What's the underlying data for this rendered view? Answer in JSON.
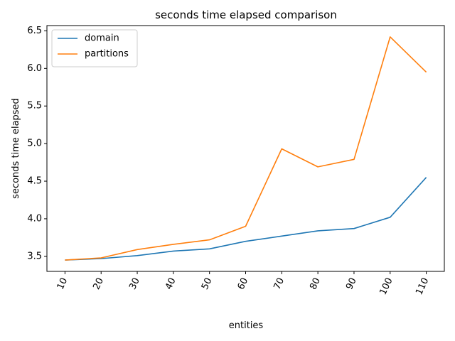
{
  "chart_data": {
    "type": "line",
    "title": "seconds time elapsed comparison",
    "xlabel": "entities",
    "ylabel": "seconds time elapsed",
    "x": [
      10,
      20,
      30,
      40,
      50,
      60,
      70,
      80,
      90,
      100,
      110
    ],
    "xticks": [
      "10",
      "20",
      "30",
      "40",
      "50",
      "60",
      "70",
      "80",
      "90",
      "100",
      "110"
    ],
    "yticks": [
      "3.5",
      "4.0",
      "4.5",
      "5.0",
      "5.5",
      "6.0",
      "6.5"
    ],
    "ylim": [
      3.3,
      6.57
    ],
    "grid": false,
    "legend_position": "top-left",
    "series": [
      {
        "name": "domain",
        "color": "#1f77b4",
        "values": [
          3.45,
          3.47,
          3.51,
          3.57,
          3.6,
          3.7,
          3.77,
          3.84,
          3.87,
          4.02,
          4.55
        ]
      },
      {
        "name": "partitions",
        "color": "#ff7f0e",
        "values": [
          3.45,
          3.48,
          3.59,
          3.66,
          3.72,
          3.9,
          4.93,
          4.69,
          4.79,
          6.42,
          5.95
        ]
      }
    ]
  }
}
